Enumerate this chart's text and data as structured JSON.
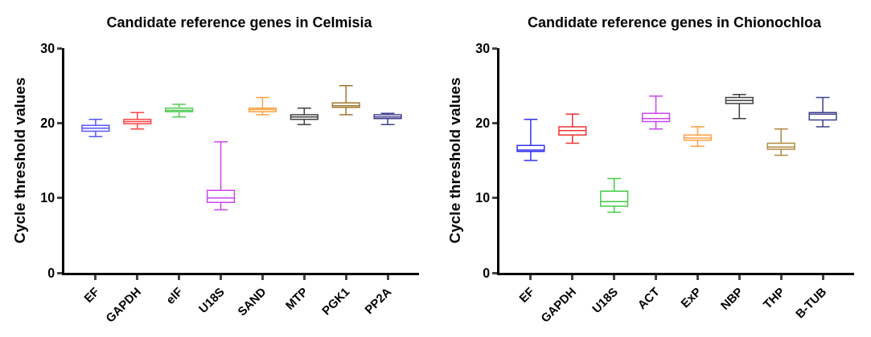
{
  "chart_data": [
    {
      "type": "box",
      "title": "Candidate reference genes in Celmisia",
      "ylabel": "Cycle threshold values",
      "categories": [
        "EF",
        "GAPDH",
        "eIF",
        "U18S",
        "SAND",
        "MTP",
        "PGK1",
        "PP2A"
      ],
      "colors": [
        "#5555ff",
        "#ff4444",
        "#55cc55",
        "#cc44ee",
        "#ffa040",
        "#404040",
        "#a07830",
        "#404090"
      ],
      "ylim": [
        0,
        30
      ],
      "yticks": [
        0,
        10,
        20,
        30
      ],
      "grid": false,
      "legend": false,
      "boxes": [
        {
          "low": 18.2,
          "q1": 18.9,
          "median": 19.3,
          "q3": 19.7,
          "high": 20.5
        },
        {
          "low": 19.2,
          "q1": 19.9,
          "median": 20.2,
          "q3": 20.5,
          "high": 21.4
        },
        {
          "low": 20.8,
          "q1": 21.5,
          "median": 21.7,
          "q3": 22.0,
          "high": 22.5
        },
        {
          "low": 8.4,
          "q1": 9.4,
          "median": 10.0,
          "q3": 11.0,
          "high": 17.5
        },
        {
          "low": 21.1,
          "q1": 21.5,
          "median": 21.8,
          "q3": 22.0,
          "high": 23.4
        },
        {
          "low": 19.8,
          "q1": 20.5,
          "median": 20.8,
          "q3": 21.1,
          "high": 22.0
        },
        {
          "low": 21.1,
          "q1": 22.1,
          "median": 22.3,
          "q3": 22.7,
          "high": 25.0
        },
        {
          "low": 19.8,
          "q1": 20.6,
          "median": 20.8,
          "q3": 21.1,
          "high": 21.3
        }
      ]
    },
    {
      "type": "box",
      "title": "Candidate reference genes in Chionochloa",
      "ylabel": "Cycle threshold values",
      "categories": [
        "EF",
        "GAPDH",
        "U18S",
        "ACT",
        "ExP",
        "NBP",
        "THP",
        "B-TUB"
      ],
      "colors": [
        "#3333ee",
        "#ee3333",
        "#44cc44",
        "#cc44ee",
        "#ffa040",
        "#404040",
        "#b08840",
        "#404090"
      ],
      "ylim": [
        0,
        30
      ],
      "yticks": [
        0,
        10,
        20,
        30
      ],
      "grid": false,
      "legend": false,
      "boxes": [
        {
          "low": 15.0,
          "q1": 16.2,
          "median": 16.4,
          "q3": 17.0,
          "high": 20.5
        },
        {
          "low": 17.3,
          "q1": 18.4,
          "median": 19.0,
          "q3": 19.5,
          "high": 21.2
        },
        {
          "low": 8.1,
          "q1": 8.9,
          "median": 9.5,
          "q3": 10.9,
          "high": 12.6
        },
        {
          "low": 19.2,
          "q1": 20.2,
          "median": 20.6,
          "q3": 21.3,
          "high": 23.6
        },
        {
          "low": 16.9,
          "q1": 17.7,
          "median": 18.0,
          "q3": 18.4,
          "high": 19.5
        },
        {
          "low": 20.6,
          "q1": 22.6,
          "median": 23.0,
          "q3": 23.4,
          "high": 23.8
        },
        {
          "low": 15.7,
          "q1": 16.5,
          "median": 16.8,
          "q3": 17.3,
          "high": 19.2
        },
        {
          "low": 19.5,
          "q1": 20.4,
          "median": 21.2,
          "q3": 21.4,
          "high": 23.4
        }
      ]
    }
  ]
}
